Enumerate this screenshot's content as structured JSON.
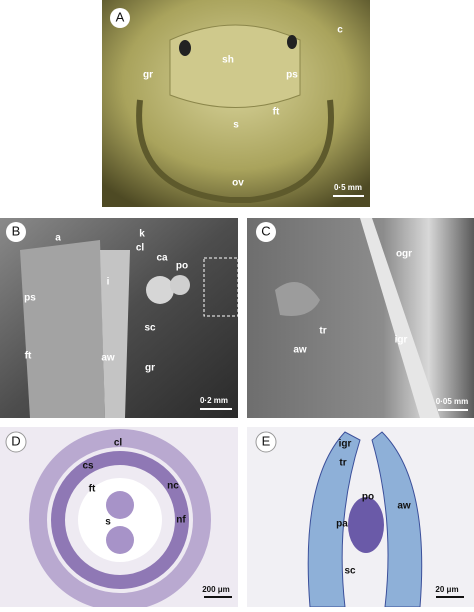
{
  "panels": [
    {
      "letter": "A",
      "labels": [
        "sh",
        "c",
        "gr",
        "ps",
        "s",
        "ft",
        "ov"
      ],
      "scale": "0·5 mm"
    },
    {
      "letter": "B",
      "labels": [
        "k",
        "a",
        "cl",
        "ca",
        "po",
        "i",
        "ps",
        "sc",
        "ft",
        "aw",
        "gr"
      ],
      "scale": "0·2 mm"
    },
    {
      "letter": "C",
      "labels": [
        "ogr",
        "tr",
        "igr",
        "aw"
      ],
      "scale": "0·05 mm"
    },
    {
      "letter": "D",
      "labels": [
        "cl",
        "cs",
        "ft",
        "nc",
        "s",
        "nf"
      ],
      "scale": "200 μm"
    },
    {
      "letter": "E",
      "labels": [
        "igr",
        "tr",
        "po",
        "aw",
        "pa",
        "sc"
      ],
      "scale": "20 μm"
    }
  ]
}
